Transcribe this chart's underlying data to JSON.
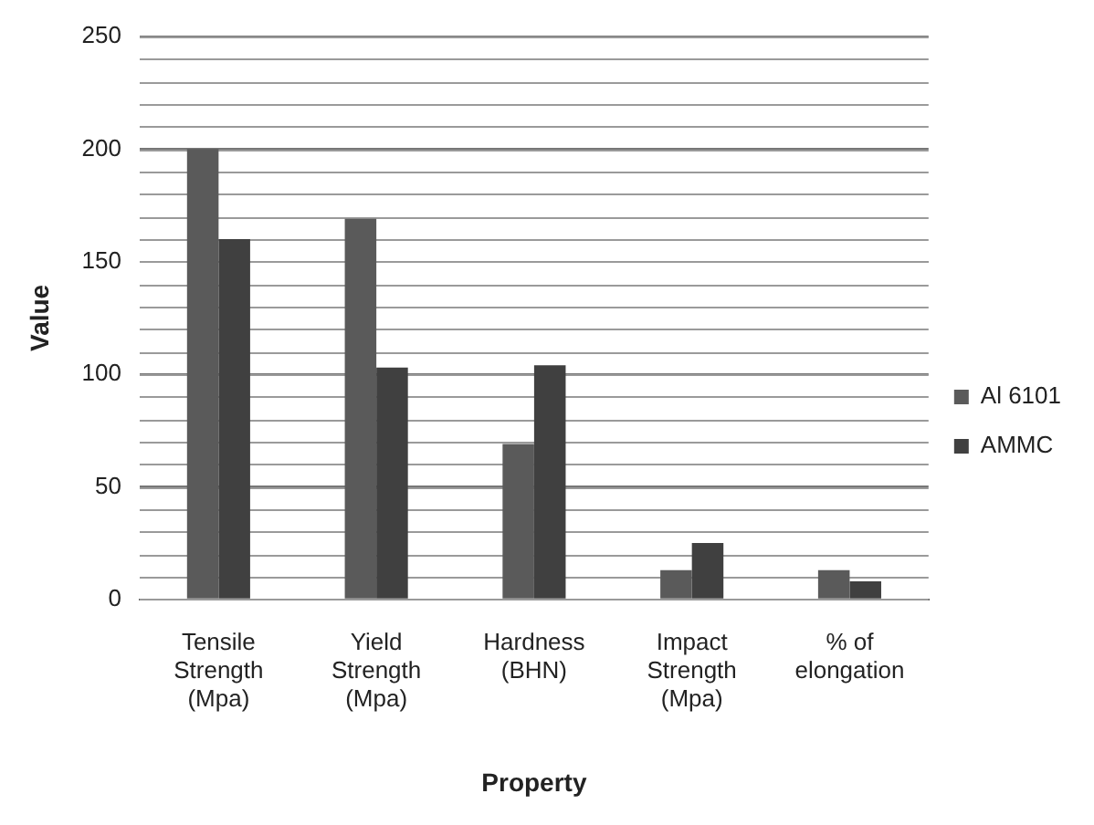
{
  "chart_data": {
    "type": "bar",
    "xlabel": "Property",
    "ylabel": "Value",
    "categories": [
      "Tensile Strength (Mpa)",
      "Yield Strength (Mpa)",
      "Hardness (BHN)",
      "Impact Strength (Mpa)",
      "% of elongation"
    ],
    "series": [
      {
        "name": "Al 6101",
        "color": "#5a5a5a",
        "values": [
          200,
          169,
          69,
          13,
          13
        ]
      },
      {
        "name": "AMMC",
        "color": "#404040",
        "values": [
          160,
          103,
          104,
          25,
          8
        ]
      }
    ],
    "ylim": [
      0,
      250
    ],
    "yticks": [
      0,
      50,
      100,
      150,
      200,
      250
    ],
    "grid": "y",
    "legend": "right"
  }
}
